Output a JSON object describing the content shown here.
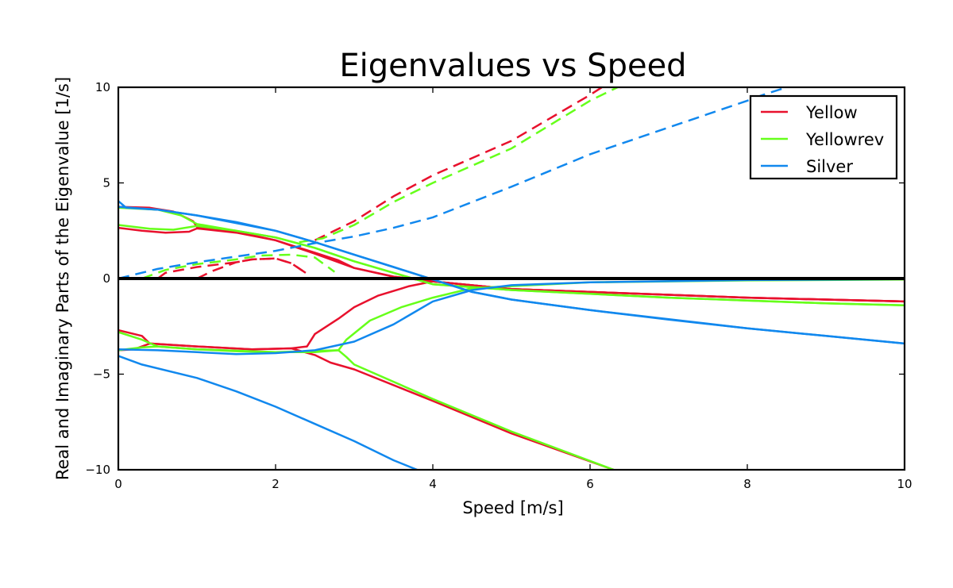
{
  "chart_data": {
    "type": "line",
    "title": "Eigenvalues vs Speed",
    "xlabel": "Speed [m/s]",
    "ylabel": "Real and Imaginary Parts of the Eigenvalue [1/s]",
    "xlim": [
      0,
      10
    ],
    "ylim": [
      -10,
      10
    ],
    "xticks": [
      0,
      2,
      4,
      6,
      8,
      10
    ],
    "xtick_labels": [
      "0",
      "2",
      "4",
      "6",
      "8",
      "10"
    ],
    "yticks": [
      10,
      5,
      0,
      -5,
      -10
    ],
    "ytick_labels": [
      "10",
      "5",
      "0",
      "−5",
      "−10"
    ],
    "grid": false,
    "legend_position": "top-right",
    "legend": [
      {
        "label": "Yellow",
        "color": "#e8112d"
      },
      {
        "label": "Yellowrev",
        "color": "#66ff1a"
      },
      {
        "label": "Silver",
        "color": "#1188ee"
      }
    ],
    "zero_line": true,
    "series": [
      {
        "name": "Yellow",
        "color": "#e8112d",
        "part": "real",
        "points": [
          [
            0,
            2.65
          ],
          [
            0.3,
            2.5
          ],
          [
            0.6,
            2.4
          ],
          [
            0.9,
            2.45
          ],
          [
            1.0,
            2.62
          ],
          [
            1.5,
            2.4
          ],
          [
            2.0,
            2.0
          ],
          [
            2.5,
            1.3
          ],
          [
            3.0,
            0.55
          ],
          [
            3.5,
            0.1
          ],
          [
            4.0,
            -0.15
          ],
          [
            5.0,
            -0.55
          ],
          [
            6.0,
            -0.7
          ],
          [
            7.0,
            -0.85
          ],
          [
            8.0,
            -1.0
          ],
          [
            9.0,
            -1.1
          ],
          [
            10.0,
            -1.2
          ]
        ]
      },
      {
        "name": "Yellow",
        "color": "#e8112d",
        "part": "real",
        "points": [
          [
            0,
            3.75
          ],
          [
            0.4,
            3.7
          ],
          [
            0.7,
            3.5
          ],
          [
            0.95,
            3.0
          ],
          [
            1.0,
            2.7
          ],
          [
            1.5,
            2.45
          ],
          [
            2.0,
            2.0
          ],
          [
            2.5,
            1.35
          ],
          [
            2.8,
            0.95
          ],
          [
            3.0,
            0.55
          ],
          [
            3.5,
            0.1
          ],
          [
            4.0,
            -0.15
          ],
          [
            5.0,
            -0.55
          ],
          [
            6.0,
            -0.7
          ],
          [
            7.0,
            -0.85
          ],
          [
            8.0,
            -1.0
          ],
          [
            9.0,
            -1.1
          ],
          [
            10.0,
            -1.2
          ]
        ]
      },
      {
        "name": "Yellow",
        "color": "#e8112d",
        "part": "real",
        "points": [
          [
            0,
            -2.7
          ],
          [
            0.3,
            -3.0
          ],
          [
            0.4,
            -3.4
          ],
          [
            1.0,
            -3.55
          ],
          [
            1.7,
            -3.7
          ],
          [
            2.2,
            -3.65
          ],
          [
            2.4,
            -3.55
          ],
          [
            2.5,
            -2.9
          ],
          [
            2.8,
            -2.1
          ],
          [
            3.0,
            -1.5
          ],
          [
            3.3,
            -0.9
          ],
          [
            3.7,
            -0.4
          ],
          [
            4.0,
            -0.15
          ],
          [
            5.0,
            -0.55
          ],
          [
            6.0,
            -0.7
          ],
          [
            7.0,
            -0.85
          ],
          [
            8.0,
            -1.0
          ],
          [
            9.0,
            -1.1
          ],
          [
            10.0,
            -1.2
          ]
        ]
      },
      {
        "name": "Yellow",
        "color": "#e8112d",
        "part": "real",
        "points": [
          [
            0,
            -3.75
          ],
          [
            0.2,
            -3.7
          ],
          [
            0.4,
            -3.4
          ],
          [
            1.0,
            -3.55
          ],
          [
            1.7,
            -3.7
          ],
          [
            2.2,
            -3.65
          ],
          [
            2.5,
            -4.0
          ],
          [
            2.7,
            -4.4
          ],
          [
            3.0,
            -4.75
          ],
          [
            4.0,
            -6.4
          ],
          [
            5.0,
            -8.1
          ],
          [
            6.3,
            -10.0
          ]
        ]
      },
      {
        "name": "Yellow",
        "color": "#e8112d",
        "part": "imaginary",
        "points": [
          [
            0.5,
            0.0
          ],
          [
            0.6,
            0.3
          ],
          [
            1.0,
            0.6
          ],
          [
            1.5,
            0.85
          ],
          [
            1.7,
            1.0
          ],
          [
            2.0,
            1.05
          ],
          [
            2.2,
            0.8
          ],
          [
            2.4,
            0.25
          ]
        ]
      },
      {
        "name": "Yellow",
        "color": "#e8112d",
        "part": "imaginary",
        "points": [
          [
            1.0,
            0.0
          ],
          [
            1.2,
            0.4
          ],
          [
            1.5,
            0.85
          ],
          [
            1.7,
            1.0
          ],
          [
            2.0,
            1.05
          ],
          [
            2.2,
            0.8
          ],
          [
            2.4,
            0.25
          ]
        ]
      },
      {
        "name": "Yellow",
        "color": "#e8112d",
        "part": "imaginary",
        "points": [
          [
            2.5,
            2.0
          ],
          [
            3.0,
            3.0
          ],
          [
            3.5,
            4.3
          ],
          [
            4.0,
            5.4
          ],
          [
            5.0,
            7.2
          ],
          [
            6.0,
            9.6
          ],
          [
            6.15,
            10.0
          ]
        ]
      },
      {
        "name": "Yellowrev",
        "color": "#66ff1a",
        "part": "real",
        "points": [
          [
            0,
            2.8
          ],
          [
            0.4,
            2.6
          ],
          [
            0.7,
            2.55
          ],
          [
            1.0,
            2.75
          ],
          [
            1.5,
            2.5
          ],
          [
            2.0,
            2.15
          ],
          [
            2.5,
            1.6
          ],
          [
            3.0,
            0.9
          ],
          [
            3.5,
            0.3
          ],
          [
            4.0,
            -0.3
          ],
          [
            5.0,
            -0.6
          ],
          [
            6.0,
            -0.8
          ],
          [
            7.0,
            -1.0
          ],
          [
            8.0,
            -1.15
          ],
          [
            9.0,
            -1.3
          ],
          [
            10.0,
            -1.4
          ]
        ]
      },
      {
        "name": "Yellowrev",
        "color": "#66ff1a",
        "part": "real",
        "points": [
          [
            0,
            3.7
          ],
          [
            0.5,
            3.6
          ],
          [
            0.8,
            3.3
          ],
          [
            1.0,
            2.85
          ],
          [
            1.5,
            2.5
          ],
          [
            2.0,
            2.15
          ],
          [
            2.5,
            1.6
          ],
          [
            3.0,
            0.9
          ],
          [
            3.5,
            0.3
          ],
          [
            4.0,
            -0.3
          ],
          [
            5.0,
            -0.6
          ],
          [
            6.0,
            -0.8
          ],
          [
            7.0,
            -1.0
          ],
          [
            8.0,
            -1.15
          ],
          [
            9.0,
            -1.3
          ],
          [
            10.0,
            -1.4
          ]
        ]
      },
      {
        "name": "Yellowrev",
        "color": "#66ff1a",
        "part": "real",
        "points": [
          [
            0,
            -2.8
          ],
          [
            0.3,
            -3.2
          ],
          [
            0.5,
            -3.55
          ],
          [
            1.0,
            -3.7
          ],
          [
            1.5,
            -3.8
          ],
          [
            2.0,
            -3.85
          ],
          [
            2.5,
            -3.85
          ],
          [
            2.8,
            -3.75
          ],
          [
            2.9,
            -3.2
          ],
          [
            3.2,
            -2.2
          ],
          [
            3.6,
            -1.5
          ],
          [
            4.0,
            -1.0
          ],
          [
            4.5,
            -0.5
          ],
          [
            5.0,
            -0.4
          ],
          [
            6.0,
            -0.2
          ],
          [
            8.0,
            -0.1
          ],
          [
            10.0,
            -0.05
          ]
        ]
      },
      {
        "name": "Yellowrev",
        "color": "#66ff1a",
        "part": "real",
        "points": [
          [
            0,
            -3.75
          ],
          [
            0.3,
            -3.6
          ],
          [
            0.5,
            -3.55
          ],
          [
            1.0,
            -3.7
          ],
          [
            2.0,
            -3.85
          ],
          [
            2.8,
            -3.75
          ],
          [
            2.9,
            -4.1
          ],
          [
            3.0,
            -4.5
          ],
          [
            4.0,
            -6.3
          ],
          [
            5.0,
            -8.0
          ],
          [
            6.3,
            -10.0
          ]
        ]
      },
      {
        "name": "Yellowrev",
        "color": "#66ff1a",
        "part": "imaginary",
        "points": [
          [
            0.3,
            0.0
          ],
          [
            0.6,
            0.45
          ],
          [
            1.0,
            0.75
          ],
          [
            1.5,
            1.0
          ],
          [
            1.8,
            1.2
          ],
          [
            2.2,
            1.25
          ],
          [
            2.5,
            1.1
          ],
          [
            2.75,
            0.35
          ]
        ]
      },
      {
        "name": "Yellowrev",
        "color": "#66ff1a",
        "part": "imaginary",
        "points": [
          [
            2.3,
            1.9
          ],
          [
            2.6,
            2.1
          ],
          [
            3.0,
            2.8
          ],
          [
            3.5,
            4.0
          ],
          [
            4.0,
            5.0
          ],
          [
            5.0,
            6.8
          ],
          [
            6.0,
            9.3
          ],
          [
            6.35,
            10.0
          ]
        ]
      },
      {
        "name": "Silver",
        "color": "#1188ee",
        "part": "real",
        "points": [
          [
            0,
            4.05
          ],
          [
            0.1,
            3.7
          ],
          [
            0.5,
            3.6
          ],
          [
            1.0,
            3.3
          ],
          [
            1.5,
            2.95
          ],
          [
            2.0,
            2.5
          ],
          [
            2.5,
            1.9
          ],
          [
            3.0,
            1.25
          ],
          [
            3.5,
            0.6
          ],
          [
            4.0,
            -0.05
          ],
          [
            4.5,
            -0.7
          ],
          [
            5.0,
            -1.1
          ],
          [
            6.0,
            -1.65
          ],
          [
            7.0,
            -2.15
          ],
          [
            8.0,
            -2.6
          ],
          [
            9.0,
            -3.0
          ],
          [
            10.0,
            -3.4
          ]
        ]
      },
      {
        "name": "Silver",
        "color": "#1188ee",
        "part": "real",
        "points": [
          [
            0,
            3.75
          ],
          [
            0.5,
            3.6
          ],
          [
            1.0,
            3.3
          ],
          [
            2.0,
            2.5
          ],
          [
            2.5,
            1.9
          ],
          [
            3.0,
            1.25
          ],
          [
            3.5,
            0.6
          ],
          [
            4.0,
            -0.05
          ],
          [
            4.5,
            -0.7
          ],
          [
            5.0,
            -1.1
          ],
          [
            6.0,
            -1.65
          ],
          [
            8.0,
            -2.6
          ],
          [
            10.0,
            -3.4
          ]
        ]
      },
      {
        "name": "Silver",
        "color": "#1188ee",
        "part": "real",
        "points": [
          [
            0,
            -3.7
          ],
          [
            0.5,
            -3.75
          ],
          [
            1.0,
            -3.85
          ],
          [
            1.5,
            -3.95
          ],
          [
            2.0,
            -3.9
          ],
          [
            2.5,
            -3.75
          ],
          [
            3.0,
            -3.3
          ],
          [
            3.5,
            -2.4
          ],
          [
            4.0,
            -1.2
          ],
          [
            4.5,
            -0.6
          ],
          [
            5.0,
            -0.35
          ],
          [
            6.0,
            -0.2
          ],
          [
            8.0,
            -0.08
          ],
          [
            10.0,
            -0.03
          ]
        ]
      },
      {
        "name": "Silver",
        "color": "#1188ee",
        "part": "real",
        "points": [
          [
            0,
            -4.05
          ],
          [
            0.3,
            -4.5
          ],
          [
            1.0,
            -5.2
          ],
          [
            1.5,
            -5.9
          ],
          [
            2.0,
            -6.7
          ],
          [
            2.5,
            -7.6
          ],
          [
            3.0,
            -8.5
          ],
          [
            3.5,
            -9.5
          ],
          [
            3.8,
            -10.0
          ]
        ]
      },
      {
        "name": "Silver",
        "color": "#1188ee",
        "part": "imaginary",
        "points": [
          [
            0,
            0.0
          ],
          [
            0.5,
            0.5
          ],
          [
            1.0,
            0.85
          ],
          [
            1.5,
            1.15
          ],
          [
            2.0,
            1.45
          ],
          [
            2.5,
            1.85
          ],
          [
            3.0,
            2.2
          ],
          [
            3.5,
            2.65
          ],
          [
            4.0,
            3.2
          ],
          [
            5.0,
            4.8
          ],
          [
            6.0,
            6.5
          ],
          [
            7.0,
            7.9
          ],
          [
            8.0,
            9.3
          ],
          [
            8.2,
            9.6
          ],
          [
            8.5,
            10.0
          ]
        ]
      }
    ]
  }
}
